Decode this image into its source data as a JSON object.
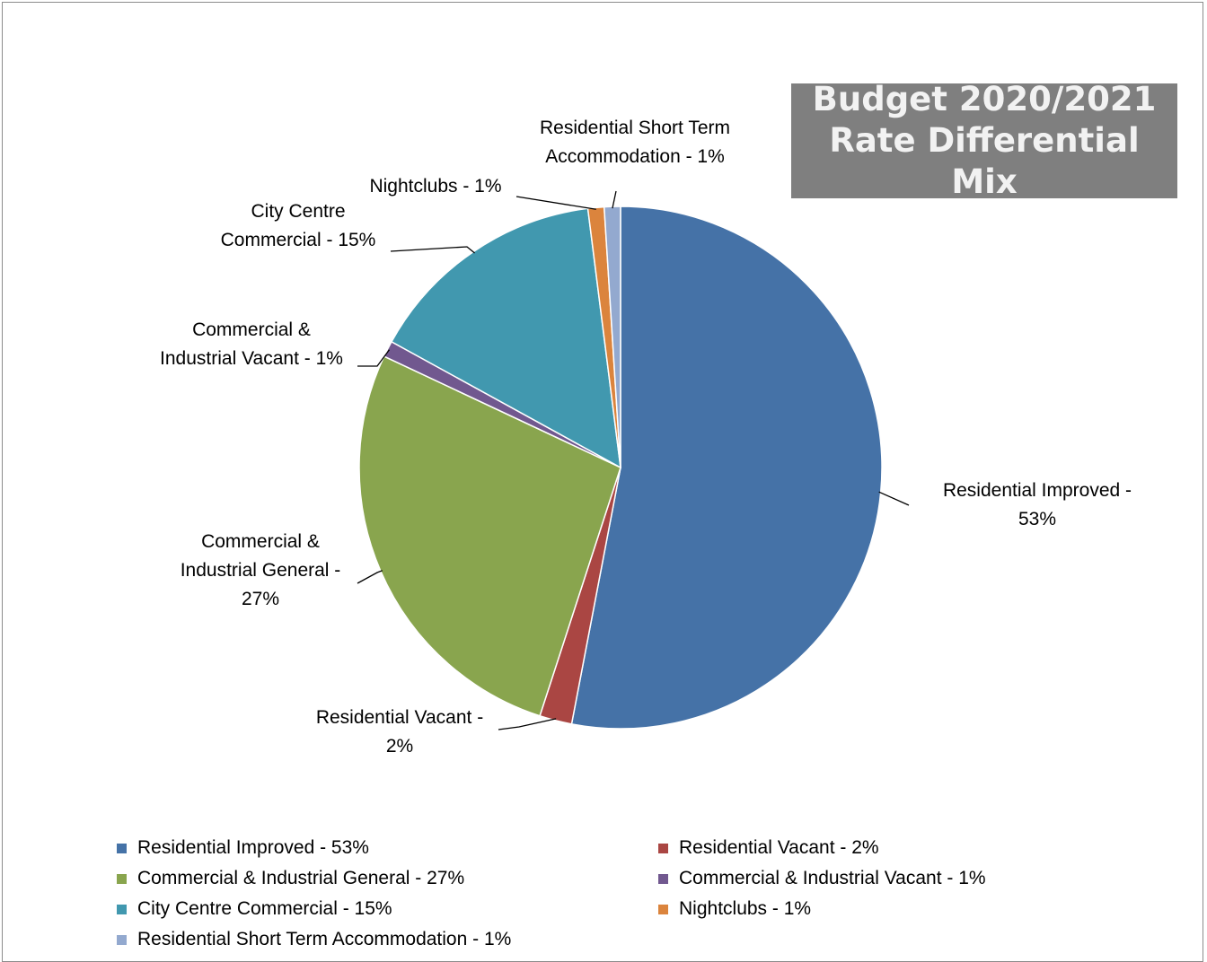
{
  "chart_data": {
    "type": "pie",
    "title": [
      "Budget 2020/2021",
      "Rate Differential Mix"
    ],
    "legend_position": "bottom",
    "slices": [
      {
        "name": "Residential Improved - 53%",
        "value": 53,
        "color": "#4572A7",
        "label_lines": [
          "Residential Improved -",
          "53%"
        ]
      },
      {
        "name": "Residential Vacant - 2%",
        "value": 2,
        "color": "#AA4643",
        "label_lines": [
          "Residential Vacant -",
          "2%"
        ]
      },
      {
        "name": "Commercial & Industrial General - 27%",
        "value": 27,
        "color": "#89A54E",
        "label_lines": [
          "Commercial &",
          "Industrial General -",
          "27%"
        ]
      },
      {
        "name": "Commercial & Industrial Vacant - 1%",
        "value": 1,
        "color": "#71588F",
        "label_lines": [
          "Commercial &",
          "Industrial Vacant - 1%"
        ]
      },
      {
        "name": "City Centre Commercial - 15%",
        "value": 15,
        "color": "#4198AF",
        "label_lines": [
          "City Centre",
          "Commercial - 15%"
        ]
      },
      {
        "name": "Nightclubs - 1%",
        "value": 1,
        "color": "#DB843D",
        "label_lines": [
          "Nightclubs - 1%"
        ]
      },
      {
        "name": "Residential Short Term Accommodation - 1%",
        "value": 1,
        "color": "#93A9CF",
        "label_lines": [
          "Residential Short Term",
          "Accommodation - 1%"
        ]
      }
    ]
  }
}
